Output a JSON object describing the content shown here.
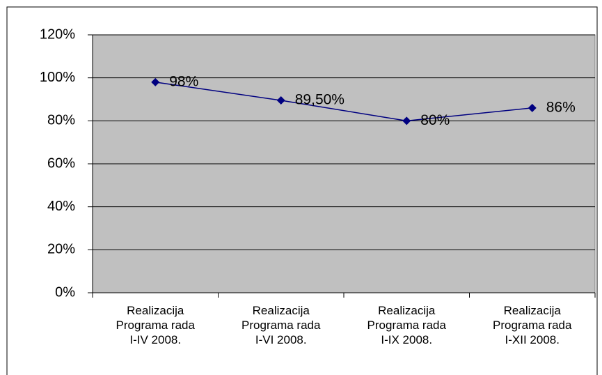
{
  "chart_data": {
    "type": "line",
    "categories": [
      "Realizacija Programa rada I-IV 2008.",
      "Realizacija Programa rada I-VI 2008.",
      "Realizacija Programa rada I-IX 2008.",
      "Realizacija Programa rada I-XII 2008."
    ],
    "series": [
      {
        "name": "Realizacija",
        "color": "#000080",
        "values": [
          98,
          89.5,
          80,
          86
        ],
        "value_labels": [
          "98%",
          "89,50%",
          "80%",
          "86%"
        ]
      }
    ],
    "ylim": [
      0,
      120
    ],
    "yticks": [
      {
        "value": 0,
        "label": "0%"
      },
      {
        "value": 20,
        "label": "20%"
      },
      {
        "value": 40,
        "label": "40%"
      },
      {
        "value": 60,
        "label": "60%"
      },
      {
        "value": 80,
        "label": "80%"
      },
      {
        "value": 100,
        "label": "100%"
      },
      {
        "value": 120,
        "label": "120%"
      }
    ],
    "grid": true,
    "plot_background": "#c0c0c0"
  }
}
